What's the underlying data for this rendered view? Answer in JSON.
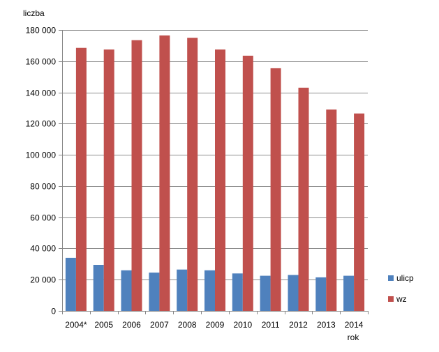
{
  "chart_data": {
    "type": "bar",
    "title": "",
    "ylabel": "liczba",
    "xlabel": "rok",
    "categories": [
      "2004*",
      "2005",
      "2006",
      "2007",
      "2008",
      "2009",
      "2010",
      "2011",
      "2012",
      "2013",
      "2014"
    ],
    "ylim": [
      0,
      180000
    ],
    "yticks": [
      0,
      20000,
      40000,
      60000,
      80000,
      100000,
      120000,
      140000,
      160000,
      180000
    ],
    "ytick_labels": [
      "0",
      "20 000",
      "40 000",
      "60 000",
      "80 000",
      "100 000",
      "120 000",
      "140 000",
      "160 000",
      "180 000"
    ],
    "grid": true,
    "legend_position": "right",
    "series": [
      {
        "name": "ulicp",
        "color": "#4F81BD",
        "values": [
          34000,
          29500,
          26000,
          24500,
          26500,
          26000,
          24000,
          22500,
          23000,
          21500,
          22500
        ]
      },
      {
        "name": "wz",
        "color": "#C0504D",
        "values": [
          168500,
          167500,
          173500,
          176500,
          175000,
          167500,
          163500,
          155500,
          143000,
          129000,
          126500
        ]
      }
    ]
  }
}
